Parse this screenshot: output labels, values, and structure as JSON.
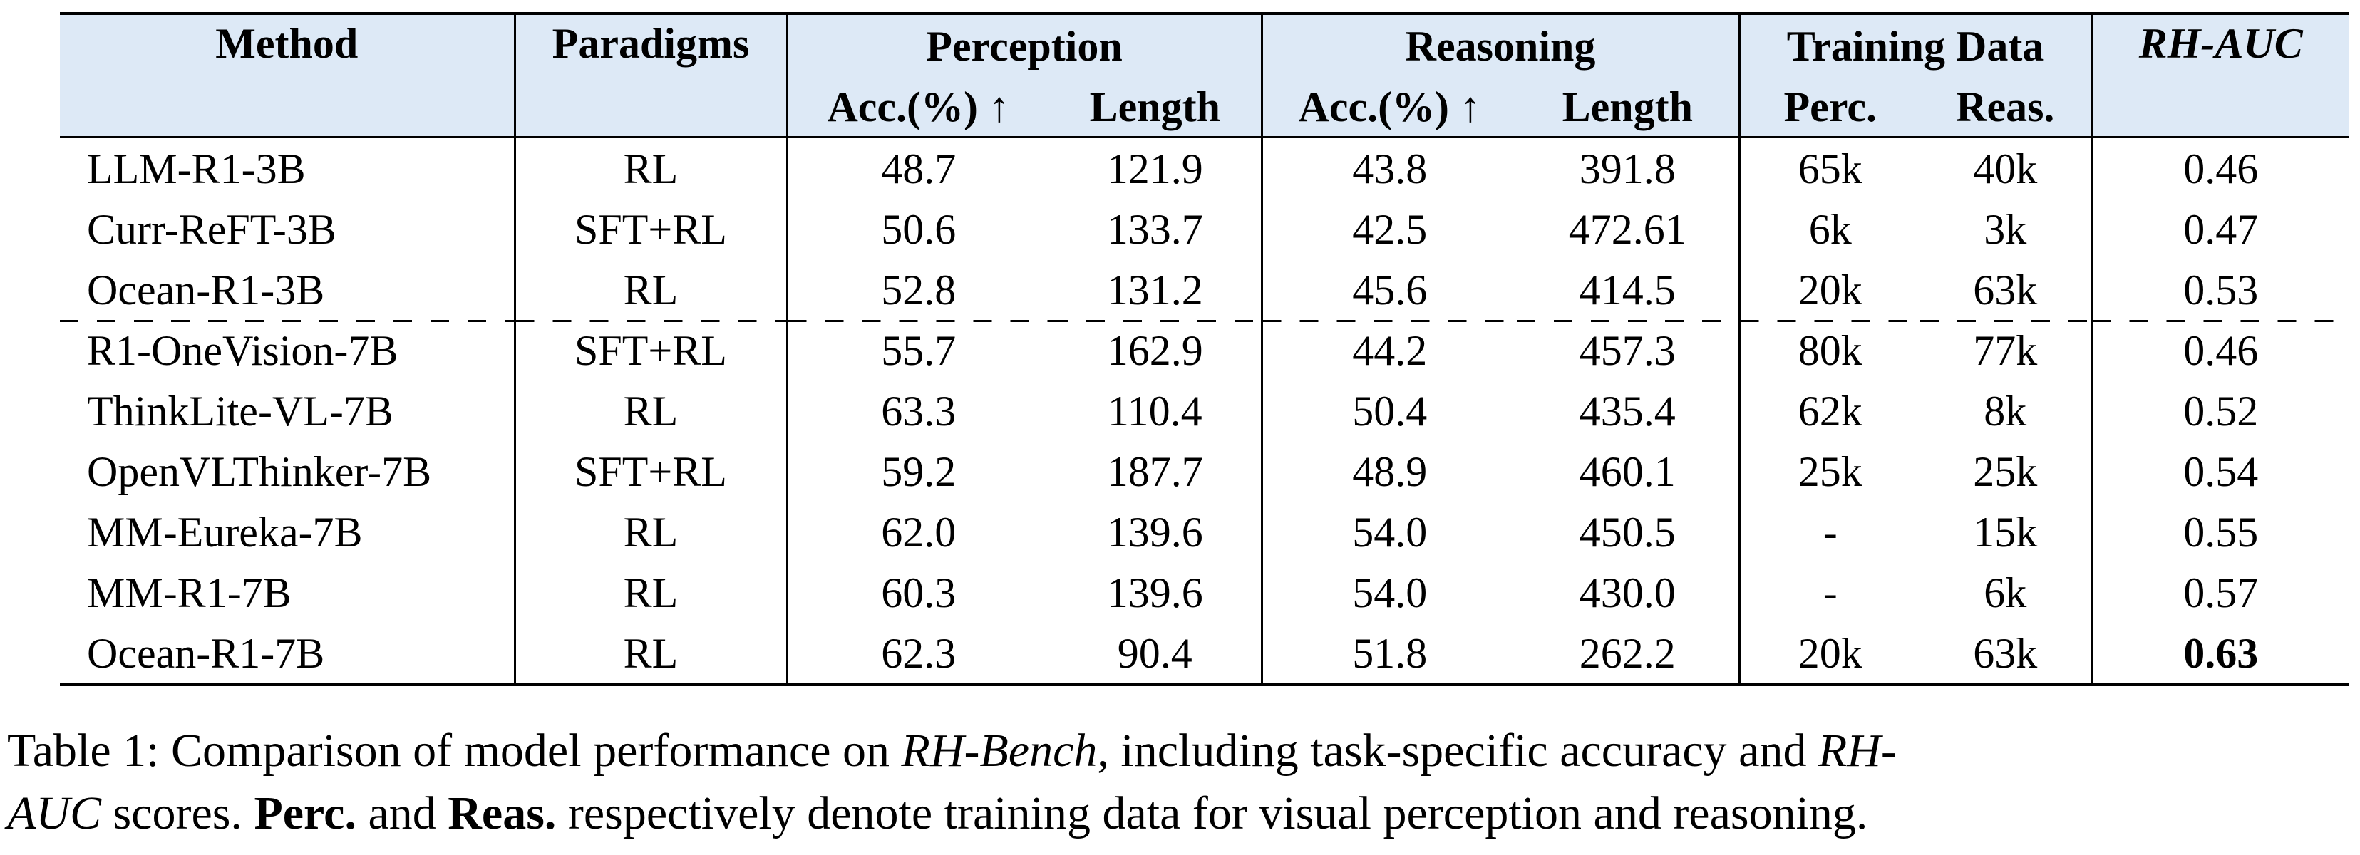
{
  "header": {
    "method": "Method",
    "paradigms": "Paradigms",
    "perception": "Perception",
    "reasoning": "Reasoning",
    "training_data": "Training Data",
    "rh_auc": "RH-AUC",
    "perc_acc": "Acc.(%) ↑",
    "perc_length": "Length",
    "reas_acc": "Acc.(%) ↑",
    "reas_length": "Length",
    "perc": "Perc.",
    "reas": "Reas."
  },
  "rows": [
    {
      "method": "LLM-R1-3B",
      "paradigm": "RL",
      "perc_acc": "48.7",
      "perc_len": "121.9",
      "reas_acc": "43.8",
      "reas_len": "391.8",
      "perc_data": "65k",
      "reas_data": "40k",
      "rh_auc": "0.46"
    },
    {
      "method": "Curr-ReFT-3B",
      "paradigm": "SFT+RL",
      "perc_acc": "50.6",
      "perc_len": "133.7",
      "reas_acc": "42.5",
      "reas_len": "472.61",
      "perc_data": "6k",
      "reas_data": "3k",
      "rh_auc": "0.47"
    },
    {
      "method": "Ocean-R1-3B",
      "paradigm": "RL",
      "perc_acc": "52.8",
      "perc_len": "131.2",
      "reas_acc": "45.6",
      "reas_len": "414.5",
      "perc_data": "20k",
      "reas_data": "63k",
      "rh_auc": "0.53"
    },
    {
      "method": "R1-OneVision-7B",
      "paradigm": "SFT+RL",
      "perc_acc": "55.7",
      "perc_len": "162.9",
      "reas_acc": "44.2",
      "reas_len": "457.3",
      "perc_data": "80k",
      "reas_data": "77k",
      "rh_auc": "0.46"
    },
    {
      "method": "ThinkLite-VL-7B",
      "paradigm": "RL",
      "perc_acc": "63.3",
      "perc_len": "110.4",
      "reas_acc": "50.4",
      "reas_len": "435.4",
      "perc_data": "62k",
      "reas_data": "8k",
      "rh_auc": "0.52"
    },
    {
      "method": "OpenVLThinker-7B",
      "paradigm": "SFT+RL",
      "perc_acc": "59.2",
      "perc_len": "187.7",
      "reas_acc": "48.9",
      "reas_len": "460.1",
      "perc_data": "25k",
      "reas_data": "25k",
      "rh_auc": "0.54"
    },
    {
      "method": "MM-Eureka-7B",
      "paradigm": "RL",
      "perc_acc": "62.0",
      "perc_len": "139.6",
      "reas_acc": "54.0",
      "reas_len": "450.5",
      "perc_data": "-",
      "reas_data": "15k",
      "rh_auc": "0.55"
    },
    {
      "method": "MM-R1-7B",
      "paradigm": "RL",
      "perc_acc": "60.3",
      "perc_len": "139.6",
      "reas_acc": "54.0",
      "reas_len": "430.0",
      "perc_data": "-",
      "reas_data": "6k",
      "rh_auc": "0.57"
    },
    {
      "method": "Ocean-R1-7B",
      "paradigm": "RL",
      "perc_acc": "62.3",
      "perc_len": "90.4",
      "reas_acc": "51.8",
      "reas_len": "262.2",
      "perc_data": "20k",
      "reas_data": "63k",
      "rh_auc": "0.63"
    }
  ],
  "caption": {
    "line1_a": "Table 1: Comparison of model performance on ",
    "line1_b": "RH-Bench",
    "line1_c": ", including task-specific accuracy and ",
    "line1_d": "RH-",
    "line2_a": "AUC",
    "line2_b": " scores. ",
    "line2_c": "Perc.",
    "line2_d": " and ",
    "line2_e": "Reas.",
    "line2_f": " respectively denote training data for visual perception and reasoning."
  }
}
